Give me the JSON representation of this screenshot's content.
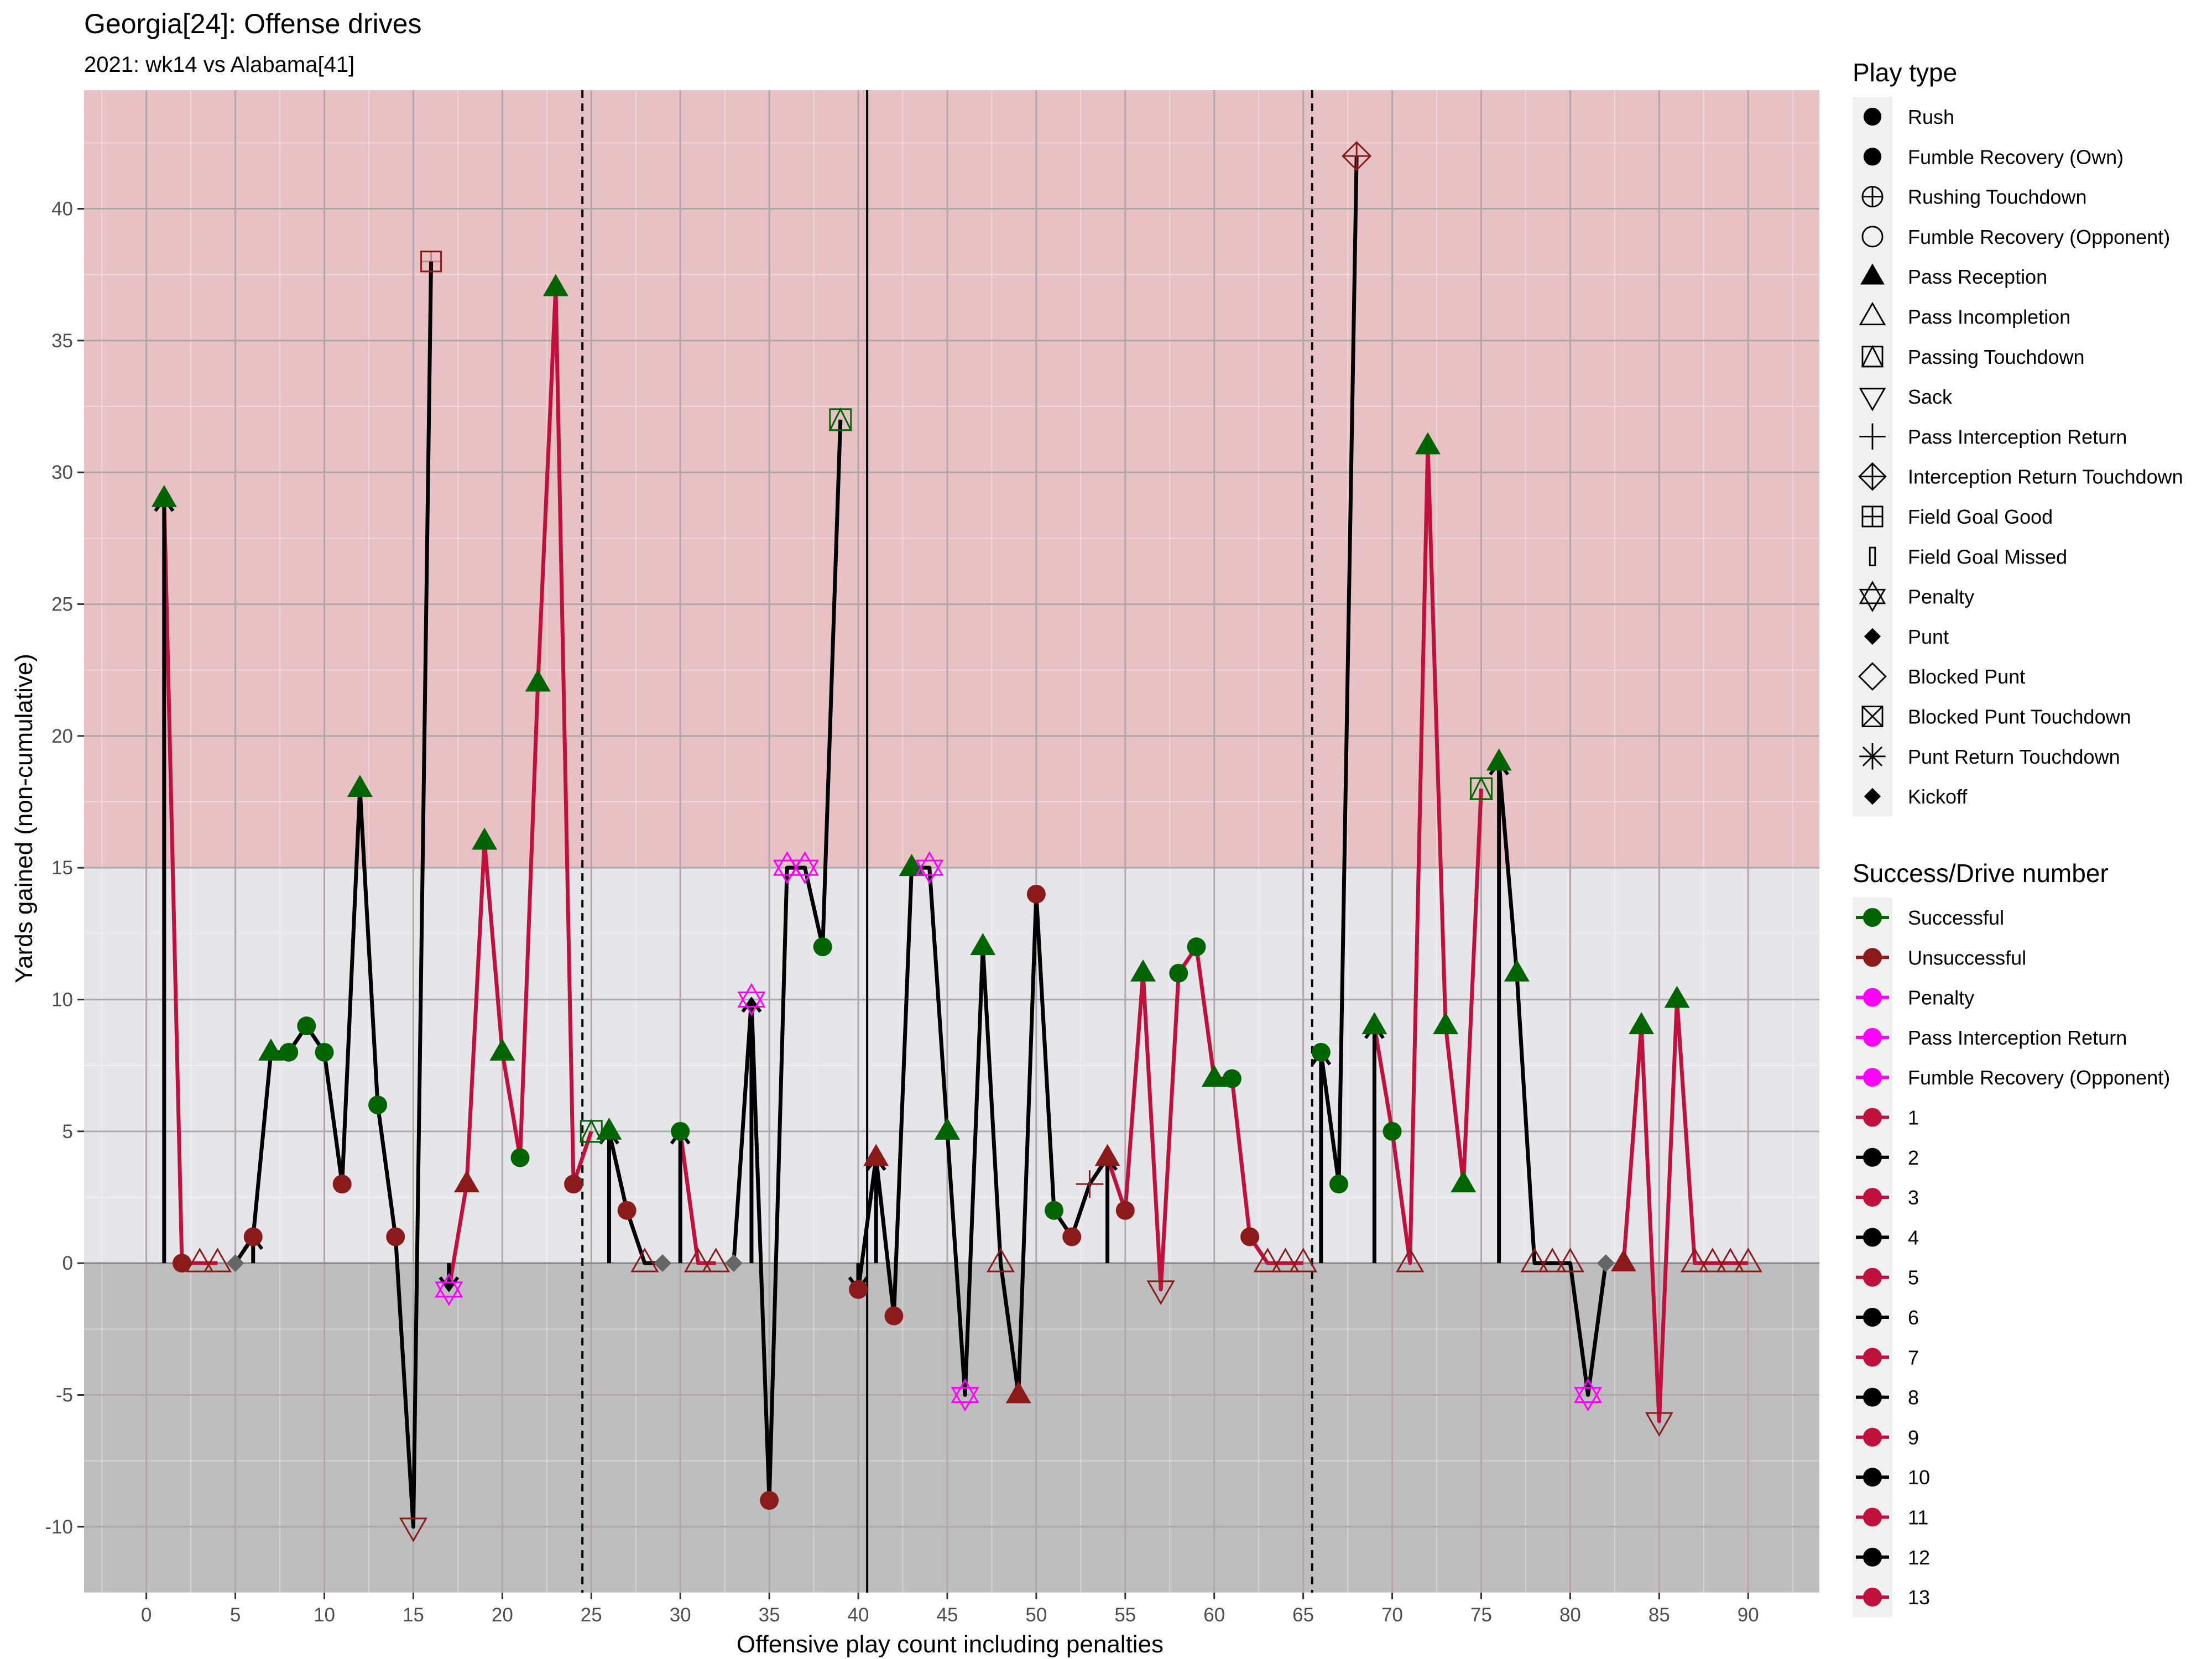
{
  "chart_data": {
    "type": "line",
    "title": "Georgia[24]: Offense drives",
    "subtitle": "2021: wk14 vs Alabama[41]",
    "xlabel": "Offensive play count including penalties",
    "ylabel": "Yards gained (non-cumulative)",
    "xlim": [
      -3.5,
      94
    ],
    "ylim": [
      -12.5,
      44.5
    ],
    "x_ticks": [
      0,
      5,
      10,
      15,
      20,
      25,
      30,
      35,
      40,
      45,
      50,
      55,
      60,
      65,
      70,
      75,
      80,
      85,
      90
    ],
    "y_ticks": [
      -10,
      -5,
      0,
      5,
      10,
      15,
      20,
      25,
      30,
      35,
      40
    ],
    "bands": [
      {
        "from": 15,
        "to": 44.5,
        "color": "#e8c1c4"
      },
      {
        "from": 0,
        "to": 15,
        "color": "#e6e6ea"
      },
      {
        "from": -12.5,
        "to": 0,
        "color": "#bebebe"
      }
    ],
    "vlines": [
      {
        "x": 24.5,
        "style": "dashed"
      },
      {
        "x": 40.5,
        "style": "solid"
      },
      {
        "x": 65.5,
        "style": "dashed"
      }
    ],
    "colors": {
      "Successful": "#006400",
      "Unsuccessful": "#8b1a1a",
      "Penalty": "#ff00ff",
      "odd_drive": "#c0103c",
      "even_drive": "#000000",
      "punt": "#666666"
    },
    "drives": [
      {
        "drive": 1,
        "x": [
          1,
          2,
          3,
          4
        ]
      },
      {
        "drive": 2,
        "x": [
          5,
          6,
          7,
          8,
          9,
          10,
          11,
          12,
          13,
          14,
          15,
          16
        ]
      },
      {
        "drive": 3,
        "x": [
          17,
          18,
          19,
          20,
          21,
          22,
          23,
          24,
          25
        ]
      },
      {
        "drive": 4,
        "x": [
          26,
          27,
          28,
          29
        ]
      },
      {
        "drive": 5,
        "x": [
          30,
          31,
          32
        ]
      },
      {
        "drive": 6,
        "x": [
          33,
          34,
          35,
          36,
          37,
          38,
          39
        ]
      },
      {
        "drive": 6,
        "x": [
          40,
          41,
          42,
          43,
          44,
          45,
          46,
          47,
          48,
          49,
          50,
          51,
          52,
          53,
          54
        ]
      },
      {
        "drive": 7,
        "x": [
          54,
          55,
          56,
          57,
          58,
          59,
          60,
          61,
          62,
          63,
          64,
          65
        ]
      },
      {
        "drive": 8,
        "x": [
          66,
          67,
          68
        ]
      },
      {
        "drive": 9,
        "x": [
          69,
          70,
          71,
          72,
          73,
          74,
          75
        ]
      },
      {
        "drive": 10,
        "x": [
          76,
          77,
          78,
          79,
          80,
          81,
          82
        ]
      },
      {
        "drive": 11,
        "x": [
          83,
          84,
          85,
          86,
          87,
          88,
          89,
          90
        ]
      }
    ],
    "points": [
      {
        "x": 1,
        "y": 29,
        "shape": "tri",
        "c": "Successful",
        "arrow": true
      },
      {
        "x": 2,
        "y": 0,
        "shape": "circle",
        "c": "Unsuccessful"
      },
      {
        "x": 3,
        "y": 0,
        "shape": "tri-open",
        "c": "Unsuccessful"
      },
      {
        "x": 4,
        "y": 0,
        "shape": "tri-open",
        "c": "Unsuccessful"
      },
      {
        "x": 5,
        "y": 0,
        "shape": "diamond",
        "c": "punt"
      },
      {
        "x": 6,
        "y": 1,
        "shape": "circle",
        "c": "Unsuccessful",
        "arrow": true
      },
      {
        "x": 7,
        "y": 8,
        "shape": "tri",
        "c": "Successful"
      },
      {
        "x": 8,
        "y": 8,
        "shape": "circle",
        "c": "Successful"
      },
      {
        "x": 9,
        "y": 9,
        "shape": "circle",
        "c": "Successful"
      },
      {
        "x": 10,
        "y": 8,
        "shape": "circle",
        "c": "Successful"
      },
      {
        "x": 11,
        "y": 3,
        "shape": "circle",
        "c": "Unsuccessful"
      },
      {
        "x": 12,
        "y": 18,
        "shape": "tri",
        "c": "Successful"
      },
      {
        "x": 13,
        "y": 6,
        "shape": "circle",
        "c": "Successful"
      },
      {
        "x": 14,
        "y": 1,
        "shape": "circle",
        "c": "Unsuccessful"
      },
      {
        "x": 15,
        "y": -10,
        "shape": "sack",
        "c": "Unsuccessful"
      },
      {
        "x": 16,
        "y": 38,
        "shape": "fgmiss",
        "c": "Unsuccessful"
      },
      {
        "x": 17,
        "y": -1,
        "shape": "star",
        "c": "Penalty",
        "arrow": true
      },
      {
        "x": 18,
        "y": 3,
        "shape": "tri",
        "c": "Unsuccessful"
      },
      {
        "x": 19,
        "y": 16,
        "shape": "tri",
        "c": "Successful"
      },
      {
        "x": 20,
        "y": 8,
        "shape": "tri",
        "c": "Successful"
      },
      {
        "x": 21,
        "y": 4,
        "shape": "circle",
        "c": "Successful"
      },
      {
        "x": 22,
        "y": 22,
        "shape": "tri",
        "c": "Successful"
      },
      {
        "x": 23,
        "y": 37,
        "shape": "tri",
        "c": "Successful"
      },
      {
        "x": 24,
        "y": 3,
        "shape": "circle",
        "c": "Unsuccessful"
      },
      {
        "x": 25,
        "y": 5,
        "shape": "passtd",
        "c": "Successful"
      },
      {
        "x": 26,
        "y": 5,
        "shape": "tri",
        "c": "Successful",
        "arrow": true
      },
      {
        "x": 27,
        "y": 2,
        "shape": "circle",
        "c": "Unsuccessful"
      },
      {
        "x": 28,
        "y": 0,
        "shape": "tri-open",
        "c": "Unsuccessful"
      },
      {
        "x": 29,
        "y": 0,
        "shape": "diamond",
        "c": "punt"
      },
      {
        "x": 30,
        "y": 5,
        "shape": "circle",
        "c": "Successful",
        "arrow": true
      },
      {
        "x": 31,
        "y": 0,
        "shape": "tri-open",
        "c": "Unsuccessful"
      },
      {
        "x": 32,
        "y": 0,
        "shape": "tri-open",
        "c": "Unsuccessful"
      },
      {
        "x": 33,
        "y": 0,
        "shape": "diamond",
        "c": "punt"
      },
      {
        "x": 34,
        "y": 10,
        "shape": "star",
        "c": "Penalty",
        "arrow": true
      },
      {
        "x": 35,
        "y": -9,
        "shape": "circle",
        "c": "Unsuccessful"
      },
      {
        "x": 36,
        "y": 15,
        "shape": "star",
        "c": "Penalty"
      },
      {
        "x": 37,
        "y": 15,
        "shape": "star",
        "c": "Penalty"
      },
      {
        "x": 38,
        "y": 12,
        "shape": "circle",
        "c": "Successful"
      },
      {
        "x": 39,
        "y": 32,
        "shape": "passtd",
        "c": "Successful"
      },
      {
        "x": 40,
        "y": -1,
        "shape": "circle",
        "c": "Unsuccessful",
        "arrow": true
      },
      {
        "x": 41,
        "y": 4,
        "shape": "tri",
        "c": "Unsuccessful",
        "arrow": true
      },
      {
        "x": 42,
        "y": -2,
        "shape": "circle",
        "c": "Unsuccessful"
      },
      {
        "x": 43,
        "y": 15,
        "shape": "tri",
        "c": "Successful"
      },
      {
        "x": 44,
        "y": 15,
        "shape": "star",
        "c": "Penalty"
      },
      {
        "x": 45,
        "y": 5,
        "shape": "tri",
        "c": "Successful"
      },
      {
        "x": 46,
        "y": -5,
        "shape": "star",
        "c": "Penalty"
      },
      {
        "x": 47,
        "y": 12,
        "shape": "tri",
        "c": "Successful"
      },
      {
        "x": 48,
        "y": 0,
        "shape": "tri-open",
        "c": "Unsuccessful"
      },
      {
        "x": 49,
        "y": -5,
        "shape": "tri",
        "c": "Unsuccessful"
      },
      {
        "x": 50,
        "y": 14,
        "shape": "circle",
        "c": "Unsuccessful"
      },
      {
        "x": 51,
        "y": 2,
        "shape": "circle",
        "c": "Successful"
      },
      {
        "x": 52,
        "y": 1,
        "shape": "circle",
        "c": "Unsuccessful"
      },
      {
        "x": 53,
        "y": 3,
        "shape": "plus",
        "c": "Unsuccessful"
      },
      {
        "x": 54,
        "y": 4,
        "shape": "tri",
        "c": "Unsuccessful",
        "arrow": true
      },
      {
        "x": 55,
        "y": 2,
        "shape": "circle",
        "c": "Unsuccessful"
      },
      {
        "x": 56,
        "y": 11,
        "shape": "tri",
        "c": "Successful"
      },
      {
        "x": 57,
        "y": -1,
        "shape": "sack",
        "c": "Unsuccessful"
      },
      {
        "x": 58,
        "y": 11,
        "shape": "circle",
        "c": "Successful"
      },
      {
        "x": 59,
        "y": 12,
        "shape": "circle",
        "c": "Successful"
      },
      {
        "x": 60,
        "y": 7,
        "shape": "tri",
        "c": "Successful"
      },
      {
        "x": 61,
        "y": 7,
        "shape": "circle",
        "c": "Successful"
      },
      {
        "x": 62,
        "y": 1,
        "shape": "circle",
        "c": "Unsuccessful"
      },
      {
        "x": 63,
        "y": 0,
        "shape": "tri-open",
        "c": "Unsuccessful"
      },
      {
        "x": 64,
        "y": 0,
        "shape": "tri-open",
        "c": "Unsuccessful"
      },
      {
        "x": 65,
        "y": 0,
        "shape": "tri-open",
        "c": "Unsuccessful"
      },
      {
        "x": 66,
        "y": 8,
        "shape": "circle",
        "c": "Successful",
        "arrow": true
      },
      {
        "x": 67,
        "y": 3,
        "shape": "circle",
        "c": "Successful"
      },
      {
        "x": 68,
        "y": 42,
        "shape": "inttd",
        "c": "Unsuccessful"
      },
      {
        "x": 69,
        "y": 9,
        "shape": "tri",
        "c": "Successful",
        "arrow": true
      },
      {
        "x": 70,
        "y": 5,
        "shape": "circle",
        "c": "Successful"
      },
      {
        "x": 71,
        "y": 0,
        "shape": "tri-open",
        "c": "Unsuccessful"
      },
      {
        "x": 72,
        "y": 31,
        "shape": "tri",
        "c": "Successful"
      },
      {
        "x": 73,
        "y": 9,
        "shape": "tri",
        "c": "Successful"
      },
      {
        "x": 74,
        "y": 3,
        "shape": "tri",
        "c": "Successful"
      },
      {
        "x": 75,
        "y": 18,
        "shape": "passtd",
        "c": "Successful"
      },
      {
        "x": 76,
        "y": 19,
        "shape": "tri",
        "c": "Successful",
        "arrow": true
      },
      {
        "x": 77,
        "y": 11,
        "shape": "tri",
        "c": "Successful"
      },
      {
        "x": 78,
        "y": 0,
        "shape": "tri-open",
        "c": "Unsuccessful"
      },
      {
        "x": 79,
        "y": 0,
        "shape": "tri-open",
        "c": "Unsuccessful"
      },
      {
        "x": 80,
        "y": 0,
        "shape": "tri-open",
        "c": "Unsuccessful"
      },
      {
        "x": 81,
        "y": -5,
        "shape": "star",
        "c": "Penalty"
      },
      {
        "x": 82,
        "y": 0,
        "shape": "diamond",
        "c": "punt"
      },
      {
        "x": 83,
        "y": 0,
        "shape": "tri",
        "c": "Unsuccessful"
      },
      {
        "x": 84,
        "y": 9,
        "shape": "tri",
        "c": "Successful"
      },
      {
        "x": 85,
        "y": -6,
        "shape": "sack",
        "c": "Unsuccessful"
      },
      {
        "x": 86,
        "y": 10,
        "shape": "tri",
        "c": "Successful"
      },
      {
        "x": 87,
        "y": 0,
        "shape": "tri-open",
        "c": "Unsuccessful"
      },
      {
        "x": 88,
        "y": 0,
        "shape": "tri-open",
        "c": "Unsuccessful"
      },
      {
        "x": 89,
        "y": 0,
        "shape": "tri-open",
        "c": "Unsuccessful"
      },
      {
        "x": 90,
        "y": 0,
        "shape": "tri-open",
        "c": "Unsuccessful"
      }
    ],
    "legend_play_type": {
      "title": "Play type",
      "placement": "right",
      "items": [
        {
          "label": "Rush",
          "shape": "circle"
        },
        {
          "label": "Fumble Recovery (Own)",
          "shape": "circle"
        },
        {
          "label": "Rushing Touchdown",
          "shape": "circle-plus"
        },
        {
          "label": "Fumble Recovery (Opponent)",
          "shape": "circle-open"
        },
        {
          "label": "Pass Reception",
          "shape": "tri"
        },
        {
          "label": "Pass Incompletion",
          "shape": "tri-open"
        },
        {
          "label": "Passing Touchdown",
          "shape": "passtd"
        },
        {
          "label": "Sack",
          "shape": "sack"
        },
        {
          "label": "Pass Interception Return",
          "shape": "plus"
        },
        {
          "label": "Interception Return Touchdown",
          "shape": "inttd"
        },
        {
          "label": "Field Goal Good",
          "shape": "fggood"
        },
        {
          "label": "Field Goal Missed",
          "shape": "fgmiss"
        },
        {
          "label": "Penalty",
          "shape": "star"
        },
        {
          "label": "Punt",
          "shape": "diamond"
        },
        {
          "label": "Blocked Punt",
          "shape": "diamond-open"
        },
        {
          "label": "Blocked Punt Touchdown",
          "shape": "square-x"
        },
        {
          "label": "Punt Return Touchdown",
          "shape": "asterisk"
        },
        {
          "label": "Kickoff",
          "shape": "diamond"
        }
      ]
    },
    "legend_success": {
      "title": "Success/Drive number",
      "placement": "right",
      "items": [
        {
          "label": "Successful",
          "color": "#006400"
        },
        {
          "label": "Unsuccessful",
          "color": "#8b1a1a"
        },
        {
          "label": "Penalty",
          "color": "#ff00ff"
        },
        {
          "label": "Pass Interception Return",
          "color": "#ff00ff"
        },
        {
          "label": "Fumble Recovery (Opponent)",
          "color": "#ff00ff"
        },
        {
          "label": "1",
          "color": "#c0103c"
        },
        {
          "label": "2",
          "color": "#000000"
        },
        {
          "label": "3",
          "color": "#c0103c"
        },
        {
          "label": "4",
          "color": "#000000"
        },
        {
          "label": "5",
          "color": "#c0103c"
        },
        {
          "label": "6",
          "color": "#000000"
        },
        {
          "label": "7",
          "color": "#c0103c"
        },
        {
          "label": "8",
          "color": "#000000"
        },
        {
          "label": "9",
          "color": "#c0103c"
        },
        {
          "label": "10",
          "color": "#000000"
        },
        {
          "label": "11",
          "color": "#c0103c"
        },
        {
          "label": "12",
          "color": "#000000"
        },
        {
          "label": "13",
          "color": "#c0103c"
        }
      ]
    }
  }
}
